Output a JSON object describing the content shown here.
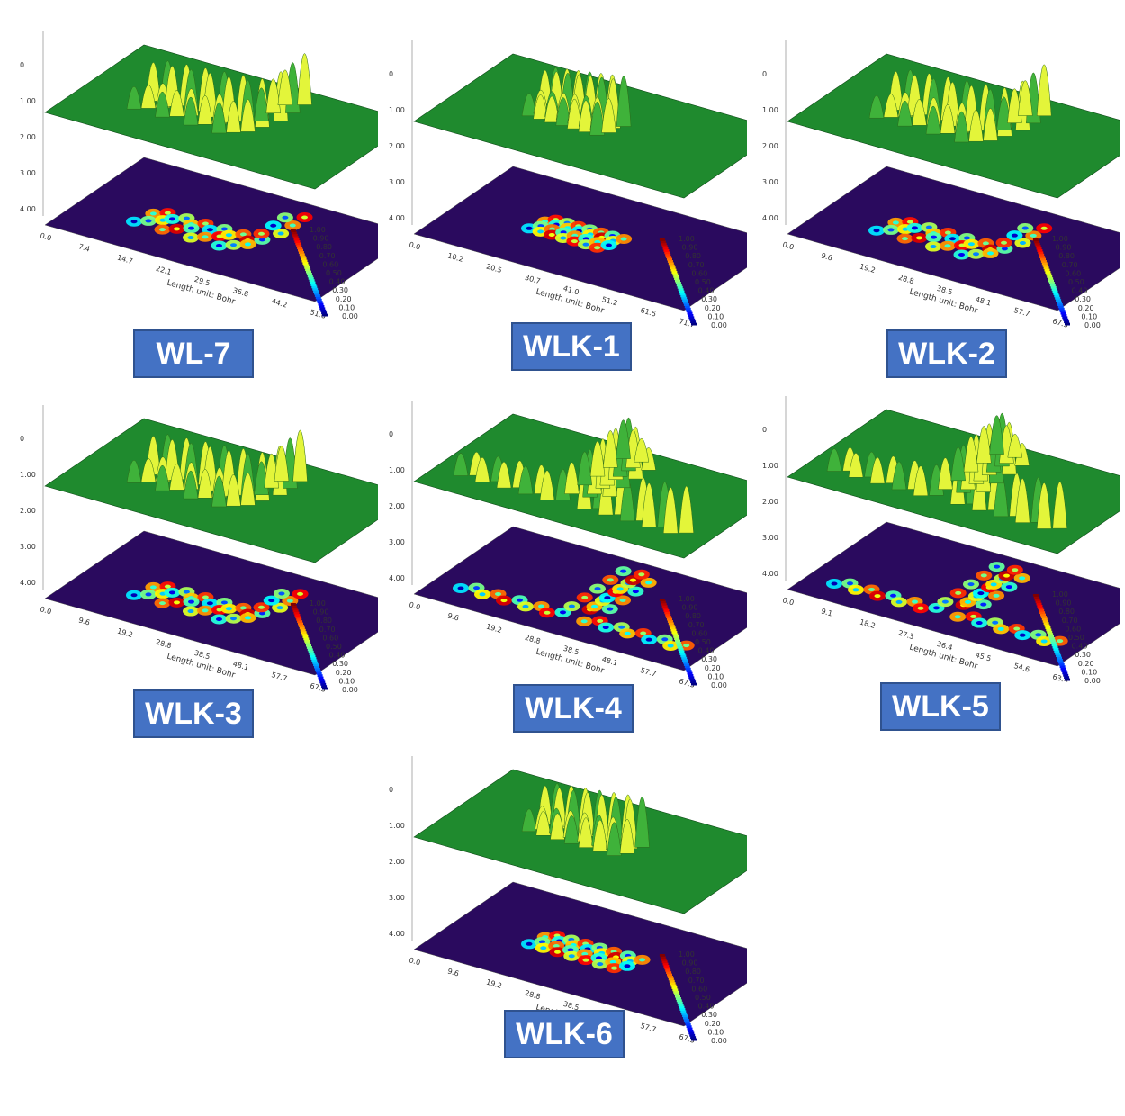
{
  "figure": {
    "panels": [
      {
        "label": "WL-7",
        "axis_title": "Length unit: Bohr",
        "x_ticks": [
          "0.0",
          "7.4",
          "14.7",
          "22.1",
          "29.5",
          "36.8",
          "44.2",
          "51.6"
        ],
        "z_ticks": [
          "0",
          "1.00",
          "2.00",
          "3.00",
          "4.00"
        ],
        "colorbar_ticks": [
          "0.00",
          "0.10",
          "0.20",
          "0.30",
          "0.40",
          "0.50",
          "0.60",
          "0.70",
          "0.80",
          "0.90",
          "1.00"
        ],
        "shape": "branched",
        "extent": 1.0
      },
      {
        "label": "WLK-1",
        "axis_title": "Length unit: Bohr",
        "x_ticks": [
          "0.0",
          "10.2",
          "20.5",
          "30.7",
          "41.0",
          "51.2",
          "61.5",
          "71.7"
        ],
        "z_ticks": [
          "0",
          "1.00",
          "2.00",
          "3.00",
          "4.00"
        ],
        "colorbar_ticks": [
          "0.00",
          "0.10",
          "0.20",
          "0.30",
          "0.40",
          "0.50",
          "0.60",
          "0.70",
          "0.80",
          "0.90",
          "1.00"
        ],
        "shape": "linear",
        "extent": 0.6
      },
      {
        "label": "WLK-2",
        "axis_title": "Length unit: Bohr",
        "x_ticks": [
          "0.0",
          "9.6",
          "19.2",
          "28.8",
          "38.5",
          "48.1",
          "57.7",
          "67.3"
        ],
        "z_ticks": [
          "0",
          "1.00",
          "2.00",
          "3.00",
          "4.00"
        ],
        "colorbar_ticks": [
          "0.00",
          "0.10",
          "0.20",
          "0.30",
          "0.40",
          "0.50",
          "0.60",
          "0.70",
          "0.80",
          "0.90",
          "1.00"
        ],
        "shape": "branched",
        "extent": 0.9
      },
      {
        "label": "WLK-3",
        "axis_title": "Length unit: Bohr",
        "x_ticks": [
          "0.0",
          "9.6",
          "19.2",
          "28.8",
          "38.5",
          "48.1",
          "57.7",
          "67.3"
        ],
        "z_ticks": [
          "0",
          "1.00",
          "2.00",
          "3.00",
          "4.00"
        ],
        "colorbar_ticks": [
          "0.00",
          "0.10",
          "0.20",
          "0.30",
          "0.40",
          "0.50",
          "0.60",
          "0.70",
          "0.80",
          "0.90",
          "1.00"
        ],
        "shape": "branched",
        "extent": 0.85
      },
      {
        "label": "WLK-4",
        "axis_title": "Length unit: Bohr",
        "x_ticks": [
          "0.0",
          "9.6",
          "19.2",
          "28.8",
          "38.5",
          "48.1",
          "57.7",
          "67.3"
        ],
        "z_ticks": [
          "0",
          "1.00",
          "2.00",
          "3.00",
          "4.00"
        ],
        "colorbar_ticks": [
          "0.00",
          "0.10",
          "0.20",
          "0.30",
          "0.40",
          "0.50",
          "0.60",
          "0.70",
          "0.80",
          "0.90",
          "1.00"
        ],
        "shape": "y",
        "extent": 1.1
      },
      {
        "label": "WLK-5",
        "axis_title": "Length unit: Bohr",
        "x_ticks": [
          "0.0",
          "9.1",
          "18.2",
          "27.3",
          "36.4",
          "45.5",
          "54.6",
          "63.4"
        ],
        "z_ticks": [
          "0",
          "1.00",
          "2.00",
          "3.00",
          "4.00"
        ],
        "colorbar_ticks": [
          "0.00",
          "0.10",
          "0.20",
          "0.30",
          "0.40",
          "0.50",
          "0.60",
          "0.70",
          "0.80",
          "0.90",
          "1.00"
        ],
        "shape": "y",
        "extent": 1.3
      },
      {
        "label": "WLK-6",
        "axis_title": "Length unit: Bohr",
        "x_ticks": [
          "0.0",
          "9.6",
          "19.2",
          "28.8",
          "38.5",
          "48.1",
          "57.7",
          "67.3"
        ],
        "z_ticks": [
          "0",
          "1.00",
          "2.00",
          "3.00",
          "4.00"
        ],
        "colorbar_ticks": [
          "0.00",
          "0.10",
          "0.20",
          "0.30",
          "0.40",
          "0.50",
          "0.60",
          "0.70",
          "0.80",
          "0.90",
          "1.00"
        ],
        "shape": "linear",
        "extent": 0.75
      }
    ]
  },
  "colors": {
    "surface": "#1f8a2e",
    "surface_edge": "#0f4d18",
    "peak_low": "#3fb23a",
    "peak_high": "#e3f53a",
    "plane": "#2a0a5e",
    "label_bg": "#4472c4"
  },
  "chart_data": {
    "type": "heatmap",
    "description_free": true,
    "colorbar": {
      "min": 0.0,
      "max": 1.0,
      "ticks": [
        0.0,
        0.1,
        0.2,
        0.3,
        0.4,
        0.5,
        0.6,
        0.7,
        0.8,
        0.9,
        1.0
      ],
      "colormap": "jet"
    },
    "panels": [
      "WL-7",
      "WLK-1",
      "WLK-2",
      "WLK-3",
      "WLK-4",
      "WLK-5",
      "WLK-6"
    ]
  }
}
